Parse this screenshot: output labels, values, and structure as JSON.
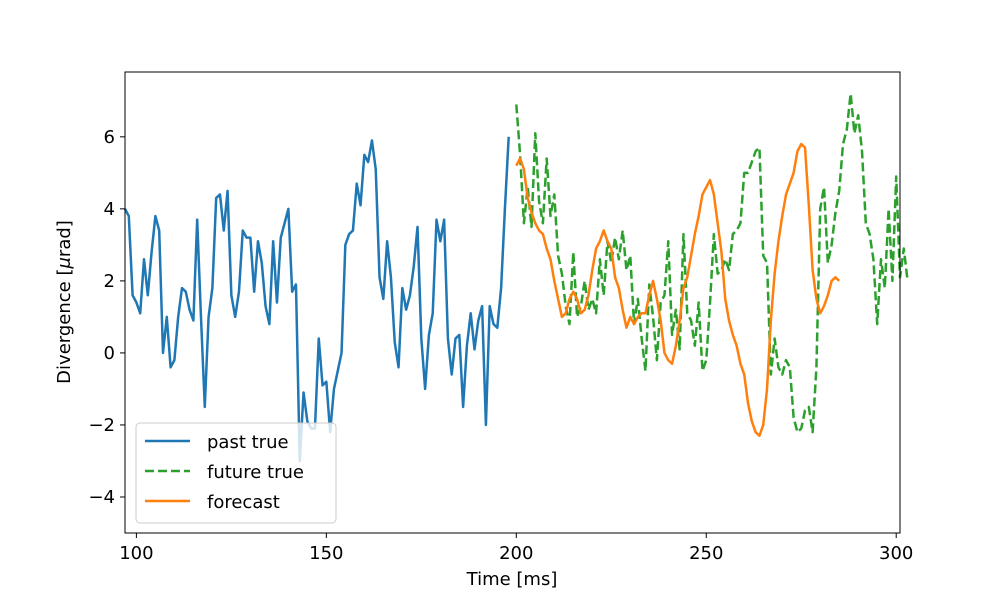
{
  "chart_data": {
    "type": "line",
    "xlabel": "Time [ms]",
    "ylabel_prefix": "Divergence [",
    "ylabel_symbol": "μ",
    "ylabel_suffix": "rad]",
    "xlim": [
      97,
      301
    ],
    "ylim": [
      -5,
      7.8
    ],
    "x_ticks": [
      100,
      150,
      200,
      250,
      300
    ],
    "y_ticks": [
      -4,
      -2,
      0,
      2,
      4,
      6
    ],
    "y_tick_labels": [
      "−4",
      "−2",
      "0",
      "2",
      "4",
      "6"
    ],
    "x_tick_labels": [
      "100",
      "150",
      "200",
      "250",
      "300"
    ],
    "grid": false,
    "legend_position": "lower-left",
    "series": [
      {
        "name": "past true",
        "color": "#1f77b4",
        "dash": "solid",
        "x_start": 97,
        "x_step": 1,
        "values": [
          4.0,
          3.8,
          1.6,
          1.4,
          1.1,
          2.6,
          1.6,
          2.8,
          3.8,
          3.4,
          0.0,
          1.0,
          -0.4,
          -0.2,
          1.0,
          1.8,
          1.7,
          1.2,
          0.9,
          3.7,
          1.0,
          -1.5,
          1.0,
          1.8,
          4.3,
          4.4,
          3.4,
          4.5,
          1.6,
          1.0,
          1.7,
          3.4,
          3.2,
          3.2,
          1.7,
          3.1,
          2.5,
          1.3,
          0.8,
          3.1,
          1.4,
          3.2,
          3.6,
          4.0,
          1.7,
          1.9,
          -3.0,
          -1.1,
          -1.9,
          -2.1,
          -2.1,
          0.4,
          -0.9,
          -0.8,
          -2.2,
          -1.0,
          -0.5,
          0.0,
          3.0,
          3.3,
          3.4,
          4.7,
          4.1,
          5.5,
          5.3,
          5.9,
          5.1,
          2.1,
          1.5,
          3.1,
          2.1,
          0.3,
          -0.4,
          1.8,
          1.2,
          1.6,
          2.4,
          3.5,
          0.4,
          -1.0,
          0.5,
          1.1,
          3.7,
          3.1,
          3.7,
          0.4,
          -0.6,
          0.4,
          0.5,
          -1.5,
          0.2,
          1.1,
          0.1,
          0.9,
          1.3,
          -2.0,
          1.3,
          0.8,
          0.7,
          1.8,
          4.0,
          6.0
        ]
      },
      {
        "name": "future true",
        "color": "#2ca02c",
        "dash": "dashed",
        "x_start": 200,
        "x_step": 1,
        "values": [
          6.9,
          5.5,
          3.6,
          4.6,
          3.5,
          6.1,
          4.2,
          3.6,
          5.4,
          3.8,
          4.4,
          2.7,
          2.2,
          1.3,
          0.8,
          2.8,
          1.0,
          1.3,
          2.0,
          1.2,
          1.5,
          1.1,
          2.6,
          1.6,
          3.1,
          2.5,
          3.2,
          2.6,
          3.4,
          2.3,
          2.7,
          0.8,
          1.5,
          0.4,
          -0.5,
          1.9,
          1.0,
          -0.2,
          1.4,
          1.6,
          3.1,
          0.5,
          1.2,
          0.1,
          3.3,
          1.1,
          0.9,
          0.2,
          1.4,
          -0.5,
          -0.2,
          1.4,
          3.3,
          2.2,
          2.3,
          2.6,
          2.3,
          3.3,
          3.4,
          3.6,
          5.0,
          5.0,
          5.3,
          5.6,
          5.7,
          2.7,
          2.5,
          -0.6,
          0.4,
          -0.4,
          -0.6,
          -0.2,
          -0.4,
          -1.8,
          -2.2,
          -2.1,
          -1.6,
          -1.5,
          -2.2,
          -0.4,
          4.0,
          4.6,
          2.5,
          3.0,
          3.9,
          4.5,
          5.8,
          6.2,
          7.2,
          6.1,
          6.6,
          5.6,
          3.6,
          3.3,
          2.6,
          0.8,
          2.6,
          1.8,
          4.0,
          2.0,
          4.9,
          2.1,
          2.9,
          2.0
        ]
      },
      {
        "name": "forecast",
        "color": "#ff7f0e",
        "dash": "solid",
        "x_start": 200,
        "x_step": 1,
        "values": [
          5.2,
          5.4,
          5.1,
          4.3,
          3.9,
          3.6,
          3.4,
          3.3,
          2.9,
          2.6,
          2.0,
          1.5,
          1.0,
          1.1,
          1.5,
          1.7,
          1.5,
          1.1,
          1.2,
          1.6,
          2.3,
          2.9,
          3.1,
          3.4,
          3.1,
          2.9,
          2.1,
          1.8,
          1.2,
          0.7,
          1.0,
          0.8,
          1.0,
          1.1,
          1.1,
          1.6,
          2.0,
          1.5,
          0.9,
          0.0,
          -0.2,
          -0.3,
          0.2,
          0.9,
          1.8,
          2.1,
          2.7,
          3.3,
          3.8,
          4.4,
          4.6,
          4.8,
          4.4,
          3.6,
          2.8,
          1.5,
          0.9,
          0.5,
          0.2,
          -0.3,
          -0.6,
          -1.4,
          -1.9,
          -2.2,
          -2.3,
          -2.0,
          -1.0,
          0.9,
          2.2,
          3.1,
          3.8,
          4.4,
          4.7,
          5.0,
          5.6,
          5.8,
          5.7,
          4.1,
          2.3,
          1.5,
          1.1,
          1.3,
          1.6,
          2.0,
          2.1,
          2.0
        ]
      }
    ]
  }
}
